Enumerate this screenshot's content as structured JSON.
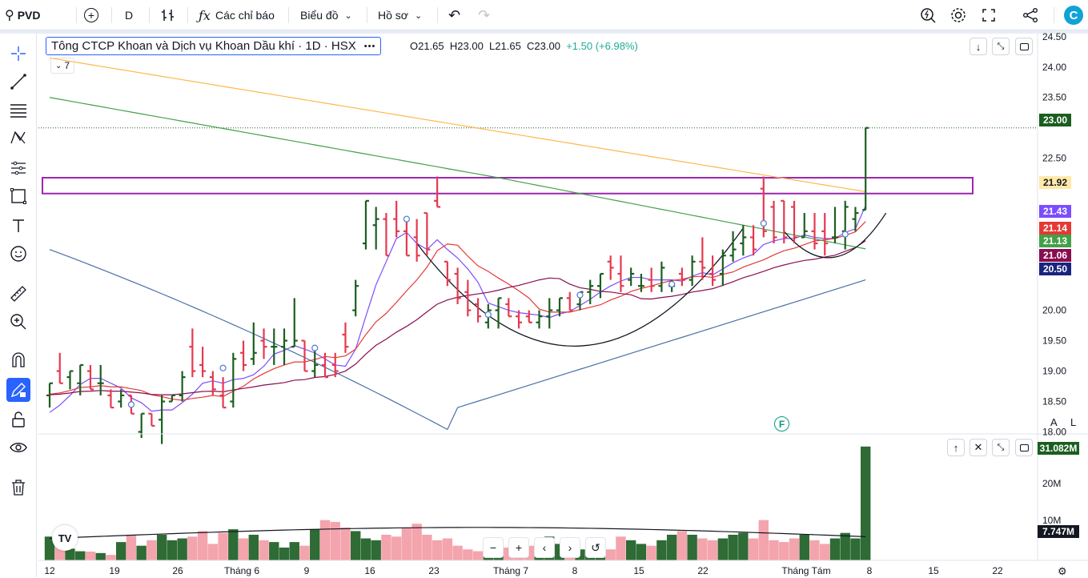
{
  "toolbar": {
    "symbol": "PVD",
    "interval": "D",
    "indicators_label": "Các chỉ báo",
    "chart_label": "Biểu đồ",
    "profile_label": "Hồ sơ",
    "app_logo": "C"
  },
  "legend": {
    "name": "Tông CTCP Khoan và Dịch vụ Khoan Dầu khí · 1D · HSX",
    "more": "•••",
    "open": "O21.65",
    "high": "H23.00",
    "low": "L21.65",
    "close": "C23.00",
    "change": "+1.50 (+6.98%)",
    "collapsed_count": "7"
  },
  "price_axis": {
    "ticks": [
      "24.50",
      "24.00",
      "23.50",
      "22.50",
      "20.00",
      "19.50",
      "19.00",
      "18.50",
      "18.00"
    ],
    "tags": [
      {
        "text": "23.00",
        "color": "#1b5e20",
        "fg": "#ffffff"
      },
      {
        "text": "21.92",
        "color": "#ffe9a8",
        "fg": "#131722"
      },
      {
        "text": "21.43",
        "color": "#7c4dff",
        "fg": "#ffffff"
      },
      {
        "text": "21.14",
        "color": "#e53935",
        "fg": "#ffffff"
      },
      {
        "text": "21.13",
        "color": "#43a047",
        "fg": "#ffffff"
      },
      {
        "text": "21.06",
        "color": "#880e4f",
        "fg": "#ffffff"
      },
      {
        "text": "20.50",
        "color": "#1a237e",
        "fg": "#ffffff"
      }
    ],
    "auto_label": "A",
    "log_label": "L"
  },
  "volume_axis": {
    "ticks": [
      "20M",
      "10M"
    ],
    "tags": [
      {
        "text": "31.082M",
        "color": "#1b5e20",
        "fg": "#ffffff"
      },
      {
        "text": "7.747M",
        "color": "#131722",
        "fg": "#ffffff"
      }
    ]
  },
  "time_axis": {
    "ticks": [
      "12",
      "19",
      "26",
      "Tháng 6",
      "9",
      "16",
      "23",
      "Tháng 7",
      "8",
      "15",
      "22",
      "Tháng Tám",
      "8",
      "15",
      "22"
    ]
  },
  "chart_data": {
    "type": "ohlc",
    "symbol": "PVD",
    "interval": "1D",
    "ylim": [
      18.0,
      24.5
    ],
    "last": {
      "open": 21.65,
      "high": 23.0,
      "low": 21.65,
      "close": 23.0,
      "change": 1.5,
      "change_pct": 6.98
    },
    "bars": [
      {
        "o": 18.6,
        "h": 18.8,
        "l": 18.4,
        "c": 18.8
      },
      {
        "o": 19.0,
        "h": 19.3,
        "l": 18.8,
        "c": 18.8
      },
      {
        "o": 18.9,
        "h": 19.0,
        "l": 18.7,
        "c": 19.0
      },
      {
        "o": 18.8,
        "h": 19.1,
        "l": 18.6,
        "c": 19.1
      },
      {
        "o": 19.0,
        "h": 19.1,
        "l": 18.7,
        "c": 18.7
      },
      {
        "o": 18.8,
        "h": 19.1,
        "l": 18.6,
        "c": 18.8
      },
      {
        "o": 18.6,
        "h": 18.7,
        "l": 18.4,
        "c": 18.4
      },
      {
        "o": 18.5,
        "h": 18.7,
        "l": 18.4,
        "c": 18.6
      },
      {
        "o": 18.6,
        "h": 18.6,
        "l": 18.3,
        "c": 18.3
      },
      {
        "o": 18.0,
        "h": 18.3,
        "l": 17.9,
        "c": 18.3
      },
      {
        "o": 18.3,
        "h": 18.3,
        "l": 18.1,
        "c": 18.1
      },
      {
        "o": 18.2,
        "h": 18.6,
        "l": 17.8,
        "c": 18.5
      },
      {
        "o": 18.5,
        "h": 18.6,
        "l": 18.5,
        "c": 18.6
      },
      {
        "o": 18.6,
        "h": 19.0,
        "l": 18.5,
        "c": 18.9
      },
      {
        "o": 19.4,
        "h": 19.7,
        "l": 18.9,
        "c": 19.0
      },
      {
        "o": 19.1,
        "h": 19.4,
        "l": 18.9,
        "c": 19.0
      },
      {
        "o": 18.9,
        "h": 19.0,
        "l": 18.6,
        "c": 18.7
      },
      {
        "o": 18.6,
        "h": 18.9,
        "l": 18.4,
        "c": 18.4
      },
      {
        "o": 18.5,
        "h": 19.3,
        "l": 18.4,
        "c": 19.2
      },
      {
        "o": 19.3,
        "h": 19.5,
        "l": 19.0,
        "c": 19.1
      },
      {
        "o": 19.2,
        "h": 19.8,
        "l": 19.1,
        "c": 19.3
      },
      {
        "o": 19.5,
        "h": 19.7,
        "l": 19.2,
        "c": 19.4
      },
      {
        "o": 19.4,
        "h": 19.7,
        "l": 19.1,
        "c": 19.4
      },
      {
        "o": 19.4,
        "h": 19.7,
        "l": 19.1,
        "c": 19.5
      },
      {
        "o": 19.4,
        "h": 20.2,
        "l": 19.4,
        "c": 19.5
      },
      {
        "o": 19.5,
        "h": 19.5,
        "l": 19.0,
        "c": 19.0
      },
      {
        "o": 19.0,
        "h": 19.4,
        "l": 18.9,
        "c": 19.1
      },
      {
        "o": 19.1,
        "h": 19.3,
        "l": 18.9,
        "c": 18.9
      },
      {
        "o": 19.1,
        "h": 19.3,
        "l": 18.9,
        "c": 19.0
      },
      {
        "o": 19.6,
        "h": 19.8,
        "l": 19.3,
        "c": 19.4
      },
      {
        "o": 20.0,
        "h": 20.5,
        "l": 19.9,
        "c": 20.4
      },
      {
        "o": 21.1,
        "h": 21.8,
        "l": 21.0,
        "c": 21.8
      },
      {
        "o": 21.4,
        "h": 21.7,
        "l": 21.0,
        "c": 21.5
      },
      {
        "o": 21.5,
        "h": 21.6,
        "l": 20.9,
        "c": 20.9
      },
      {
        "o": 21.5,
        "h": 21.8,
        "l": 21.2,
        "c": 21.3
      },
      {
        "o": 21.3,
        "h": 21.5,
        "l": 20.9,
        "c": 20.9
      },
      {
        "o": 21.2,
        "h": 21.5,
        "l": 20.8,
        "c": 20.9
      },
      {
        "o": 21.6,
        "h": 21.6,
        "l": 20.9,
        "c": 21.0
      },
      {
        "o": 21.8,
        "h": 22.2,
        "l": 21.7,
        "c": 21.7
      },
      {
        "o": 20.8,
        "h": 20.8,
        "l": 20.4,
        "c": 20.5
      },
      {
        "o": 20.6,
        "h": 20.7,
        "l": 20.1,
        "c": 20.2
      },
      {
        "o": 20.3,
        "h": 20.5,
        "l": 19.9,
        "c": 20.0
      },
      {
        "o": 20.1,
        "h": 20.2,
        "l": 19.8,
        "c": 19.9
      },
      {
        "o": 19.8,
        "h": 20.1,
        "l": 19.7,
        "c": 20.0
      },
      {
        "o": 20.0,
        "h": 20.2,
        "l": 19.7,
        "c": 20.2
      },
      {
        "o": 20.1,
        "h": 20.2,
        "l": 19.9,
        "c": 19.9
      },
      {
        "o": 19.9,
        "h": 20.0,
        "l": 19.7,
        "c": 19.8
      },
      {
        "o": 19.9,
        "h": 20.0,
        "l": 19.8,
        "c": 19.8
      },
      {
        "o": 19.8,
        "h": 20.0,
        "l": 19.7,
        "c": 19.9
      },
      {
        "o": 19.9,
        "h": 20.2,
        "l": 19.7,
        "c": 20.0
      },
      {
        "o": 20.0,
        "h": 20.2,
        "l": 19.9,
        "c": 20.2
      },
      {
        "o": 20.2,
        "h": 20.3,
        "l": 20.0,
        "c": 20.0
      },
      {
        "o": 20.1,
        "h": 20.3,
        "l": 20.0,
        "c": 20.3
      },
      {
        "o": 20.3,
        "h": 20.5,
        "l": 20.1,
        "c": 20.4
      },
      {
        "o": 20.4,
        "h": 20.6,
        "l": 20.2,
        "c": 20.6
      },
      {
        "o": 20.8,
        "h": 20.9,
        "l": 20.5,
        "c": 20.7
      },
      {
        "o": 20.6,
        "h": 20.9,
        "l": 20.3,
        "c": 20.4
      },
      {
        "o": 20.5,
        "h": 20.7,
        "l": 20.4,
        "c": 20.6
      },
      {
        "o": 20.4,
        "h": 20.6,
        "l": 20.3,
        "c": 20.4
      },
      {
        "o": 20.5,
        "h": 20.7,
        "l": 20.3,
        "c": 20.4
      },
      {
        "o": 20.4,
        "h": 20.8,
        "l": 20.3,
        "c": 20.7
      },
      {
        "o": 20.4,
        "h": 20.5,
        "l": 20.3,
        "c": 20.4
      },
      {
        "o": 20.6,
        "h": 20.7,
        "l": 20.4,
        "c": 20.5
      },
      {
        "o": 20.5,
        "h": 20.9,
        "l": 20.4,
        "c": 20.8
      },
      {
        "o": 20.8,
        "h": 21.2,
        "l": 20.5,
        "c": 20.7
      },
      {
        "o": 20.6,
        "h": 20.9,
        "l": 20.4,
        "c": 20.5
      },
      {
        "o": 20.6,
        "h": 21.0,
        "l": 20.4,
        "c": 20.9
      },
      {
        "o": 20.9,
        "h": 21.3,
        "l": 20.8,
        "c": 21.0
      },
      {
        "o": 21.1,
        "h": 21.4,
        "l": 20.9,
        "c": 21.2
      },
      {
        "o": 21.2,
        "h": 21.4,
        "l": 20.9,
        "c": 21.0
      },
      {
        "o": 22.0,
        "h": 22.2,
        "l": 21.2,
        "c": 21.3
      },
      {
        "o": 21.7,
        "h": 21.8,
        "l": 21.1,
        "c": 21.2
      },
      {
        "o": 21.8,
        "h": 21.8,
        "l": 21.1,
        "c": 21.2
      },
      {
        "o": 21.7,
        "h": 21.8,
        "l": 21.1,
        "c": 21.2
      },
      {
        "o": 21.2,
        "h": 21.6,
        "l": 21.2,
        "c": 21.3
      },
      {
        "o": 21.3,
        "h": 21.6,
        "l": 21.0,
        "c": 21.1
      },
      {
        "o": 21.3,
        "h": 21.6,
        "l": 20.9,
        "c": 21.1
      },
      {
        "o": 21.2,
        "h": 21.7,
        "l": 21.1,
        "c": 21.2
      },
      {
        "o": 21.3,
        "h": 21.8,
        "l": 21.0,
        "c": 21.7
      },
      {
        "o": 21.5,
        "h": 21.7,
        "l": 21.3,
        "c": 21.6
      },
      {
        "o": 21.65,
        "h": 23.0,
        "l": 21.65,
        "c": 23.0
      }
    ],
    "volume": [
      6.5,
      5.1,
      3.2,
      2.5,
      2.4,
      2.0,
      1.5,
      5.0,
      7.0,
      4.0,
      5.5,
      7.0,
      5.5,
      6.0,
      6.5,
      8.0,
      4.5,
      7.5,
      8.5,
      6.0,
      7.0,
      5.5,
      5.0,
      3.5,
      5.0,
      4.0,
      8.5,
      11.0,
      10.5,
      9.0,
      8.0,
      6.0,
      5.5,
      7.0,
      6.5,
      9.0,
      10.0,
      7.0,
      5.5,
      6.0,
      4.0,
      3.0,
      2.5,
      3.5,
      4.0,
      3.5,
      2.0,
      4.0,
      5.0,
      6.5,
      4.5,
      6.0,
      3.0,
      5.5,
      4.0,
      3.0,
      6.5,
      5.5,
      4.5,
      4.0,
      5.5,
      7.0,
      8.0,
      7.0,
      6.0,
      5.5,
      6.0,
      7.0,
      7.5,
      6.0,
      11.0,
      5.5,
      5.0,
      6.0,
      7.0,
      5.5,
      4.5,
      6.0,
      7.5,
      6.0,
      31.082
    ],
    "volume_ma_last": 7.747,
    "moving_averages": [
      {
        "color": "#7c4dff",
        "last": 21.43
      },
      {
        "color": "#e53935",
        "last": 21.14
      },
      {
        "color": "#43a047",
        "last": 21.13
      },
      {
        "color": "#880e4f",
        "last": 21.06
      },
      {
        "color": "#4a6fa5",
        "last": 20.5
      },
      {
        "color": "#ffb74d",
        "last": 21.92
      }
    ],
    "resistance_zone": [
      21.92,
      22.18
    ]
  }
}
